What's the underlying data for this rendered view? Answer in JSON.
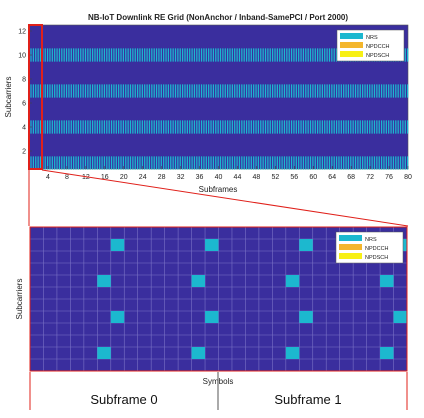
{
  "colors": {
    "background": "#3a2e9e",
    "nrs": "#1cb8cf",
    "npdcch": "#f4b62c",
    "npdsch": "#f7f016",
    "highlight": "#e0201a",
    "grid": "#7a72c6"
  },
  "chart_data": [
    {
      "type": "heatmap",
      "title": "NB-IoT Downlink RE Grid (NonAnchor / Inband-SamePCI / Port 2000)",
      "xlabel": "Subframes",
      "ylabel": "Subcarriers",
      "xlim": [
        0,
        80
      ],
      "ylim": [
        0.5,
        12.5
      ],
      "x_ticks": [
        4,
        8,
        12,
        16,
        20,
        24,
        28,
        32,
        36,
        40,
        44,
        48,
        52,
        56,
        60,
        64,
        68,
        72,
        76,
        80
      ],
      "x_tick_labels": [
        "4",
        "8",
        "12",
        "16",
        "20",
        "24",
        "28",
        "32",
        "36",
        "40",
        "44",
        "48",
        "52",
        "56",
        "60",
        "64",
        "68",
        "72",
        "76",
        "80"
      ],
      "y_ticks": [
        2,
        4,
        6,
        8,
        10,
        12
      ],
      "y_tick_labels": [
        "2",
        "4",
        "6",
        "8",
        "10",
        "12"
      ],
      "legend": [
        "NRS",
        "NPDCCH",
        "NPDSCH"
      ],
      "legend_position": "top-right",
      "nrs_subcarriers": [
        1,
        4,
        7,
        10
      ],
      "nrs_symbols_per_subframe": [
        5,
        6,
        12,
        13
      ],
      "highlight_subframes": [
        0,
        1
      ],
      "grid": false
    },
    {
      "type": "heatmap",
      "title": "",
      "xlabel": "Symbols",
      "ylabel": "Subcarriers",
      "xlim": [
        0,
        28
      ],
      "ylim": [
        0,
        12
      ],
      "legend": [
        "NRS",
        "NPDCCH",
        "NPDSCH"
      ],
      "legend_position": "top-right",
      "nrs_cells": [
        {
          "symbol": 5,
          "subcarrier": 1
        },
        {
          "symbol": 12,
          "subcarrier": 1
        },
        {
          "symbol": 19,
          "subcarrier": 1
        },
        {
          "symbol": 26,
          "subcarrier": 1
        },
        {
          "symbol": 6,
          "subcarrier": 4
        },
        {
          "symbol": 13,
          "subcarrier": 4
        },
        {
          "symbol": 20,
          "subcarrier": 4
        },
        {
          "symbol": 27,
          "subcarrier": 4
        },
        {
          "symbol": 5,
          "subcarrier": 7
        },
        {
          "symbol": 12,
          "subcarrier": 7
        },
        {
          "symbol": 19,
          "subcarrier": 7
        },
        {
          "symbol": 26,
          "subcarrier": 7
        },
        {
          "symbol": 6,
          "subcarrier": 10
        },
        {
          "symbol": 13,
          "subcarrier": 10
        },
        {
          "symbol": 20,
          "subcarrier": 10
        },
        {
          "symbol": 27,
          "subcarrier": 10
        }
      ],
      "subframe_labels": [
        "Subframe 0",
        "Subframe 1"
      ],
      "grid": true
    }
  ]
}
